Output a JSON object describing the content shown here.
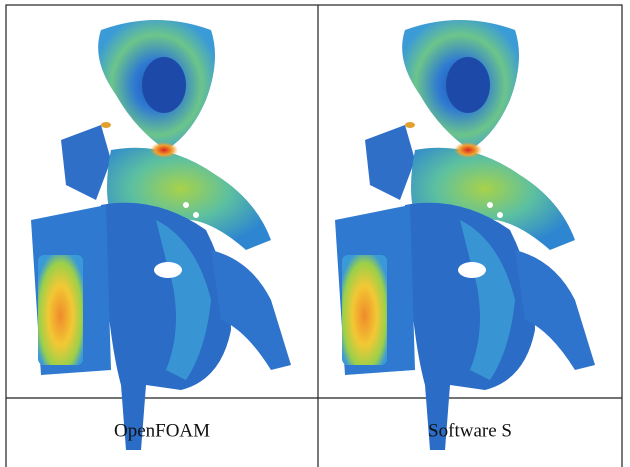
{
  "captions": [
    "OpenFOAM",
    "Software S"
  ]
}
